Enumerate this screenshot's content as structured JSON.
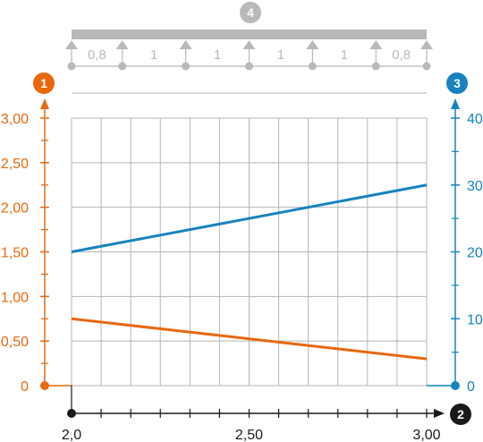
{
  "colors": {
    "left_axis": "#e8680f",
    "right_axis": "#1683bf",
    "bottom_axis": "#1a1a1a",
    "beam": "#b9b9b9",
    "grid": "#b5b5b5"
  },
  "badges": {
    "left": "1",
    "bottom": "2",
    "right": "3",
    "beam": "4"
  },
  "beam": {
    "spans": [
      "0,8",
      "1",
      "1",
      "1",
      "1",
      "0,8"
    ],
    "span_lengths": [
      0.8,
      1,
      1,
      1,
      1,
      0.8
    ]
  },
  "chart_data": {
    "type": "line",
    "x": [
      2.0,
      3.0
    ],
    "xlim": [
      2.0,
      3.0
    ],
    "x_ticks": [
      "2,0",
      "2,50",
      "3,00"
    ],
    "x_tick_values": [
      2.0,
      2.5,
      3.0
    ],
    "x_minor_ticks": 12,
    "y_left": {
      "ylim": [
        0,
        3.0
      ],
      "ticks": [
        "0",
        "0,50",
        "1,00",
        "1,50",
        "2,00",
        "2,50",
        "3,00"
      ],
      "tick_values": [
        0,
        0.5,
        1.0,
        1.5,
        2.0,
        2.5,
        3.0
      ]
    },
    "y_right": {
      "ylim": [
        0,
        40
      ],
      "ticks": [
        "0",
        "10",
        "20",
        "30",
        "40"
      ],
      "tick_values": [
        0,
        10,
        20,
        30,
        40
      ]
    },
    "series": [
      {
        "axis": "left",
        "color": "#e8680f",
        "values": [
          0.75,
          0.3
        ]
      },
      {
        "axis": "right",
        "color": "#1683bf",
        "values": [
          20,
          30
        ]
      }
    ],
    "grid": true
  }
}
